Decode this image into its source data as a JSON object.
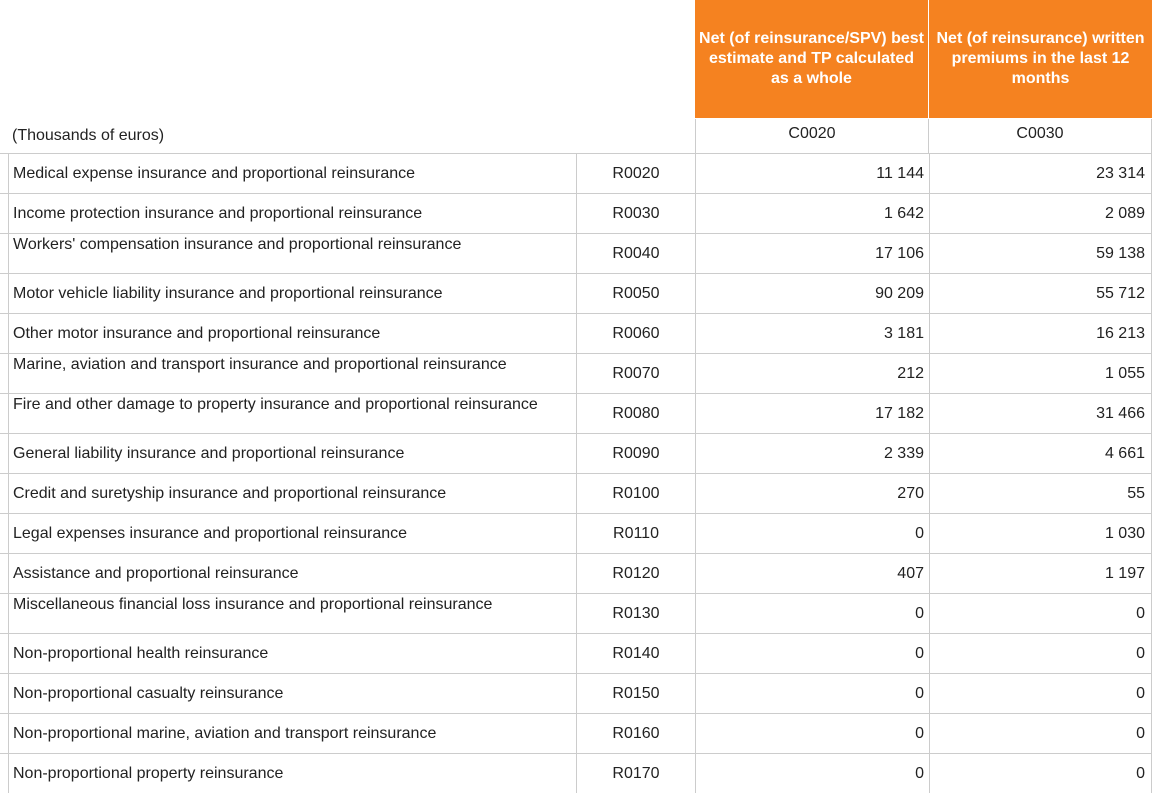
{
  "header": {
    "c0020_title": "Net (of reinsurance/SPV) best estimate and TP calculated as a whole",
    "c0030_title": "Net (of reinsurance) written premiums in the last 12 months"
  },
  "units_label": "(Thousands of euros)",
  "column_codes": {
    "c0020": "C0020",
    "c0030": "C0030"
  },
  "rows": [
    {
      "label": "Medical expense insurance and proportional reinsurance",
      "code": "R0020",
      "c0020": "11 144",
      "c0030": "23 314"
    },
    {
      "label": "Income protection insurance and proportional reinsurance",
      "code": "R0030",
      "c0020": "1 642",
      "c0030": "2 089"
    },
    {
      "label": "Workers' compensation insurance and proportional reinsurance",
      "code": "R0040",
      "c0020": "17 106",
      "c0030": "59 138"
    },
    {
      "label": "Motor vehicle liability insurance and proportional reinsurance",
      "code": "R0050",
      "c0020": "90 209",
      "c0030": "55 712"
    },
    {
      "label": "Other motor insurance and proportional reinsurance",
      "code": "R0060",
      "c0020": "3 181",
      "c0030": "16 213"
    },
    {
      "label": "Marine, aviation and transport insurance and proportional reinsurance",
      "code": "R0070",
      "c0020": "212",
      "c0030": "1 055"
    },
    {
      "label": "Fire and other damage to property insurance and proportional reinsurance",
      "code": "R0080",
      "c0020": "17 182",
      "c0030": "31 466"
    },
    {
      "label": "General liability insurance and proportional reinsurance",
      "code": "R0090",
      "c0020": "2 339",
      "c0030": "4 661"
    },
    {
      "label": "Credit and suretyship insurance and proportional reinsurance",
      "code": "R0100",
      "c0020": "270",
      "c0030": "55"
    },
    {
      "label": "Legal expenses insurance and proportional reinsurance",
      "code": "R0110",
      "c0020": "0",
      "c0030": "1 030"
    },
    {
      "label": "Assistance and proportional reinsurance",
      "code": "R0120",
      "c0020": "407",
      "c0030": "1 197"
    },
    {
      "label": "Miscellaneous financial loss insurance and proportional reinsurance",
      "code": "R0130",
      "c0020": "0",
      "c0030": "0"
    },
    {
      "label": "Non-proportional health reinsurance",
      "code": "R0140",
      "c0020": "0",
      "c0030": "0"
    },
    {
      "label": "Non-proportional casualty reinsurance",
      "code": "R0150",
      "c0020": "0",
      "c0030": "0"
    },
    {
      "label": "Non-proportional marine, aviation and transport reinsurance",
      "code": "R0160",
      "c0020": "0",
      "c0030": "0"
    },
    {
      "label": "Non-proportional property reinsurance",
      "code": "R0170",
      "c0020": "0",
      "c0030": "0"
    }
  ]
}
